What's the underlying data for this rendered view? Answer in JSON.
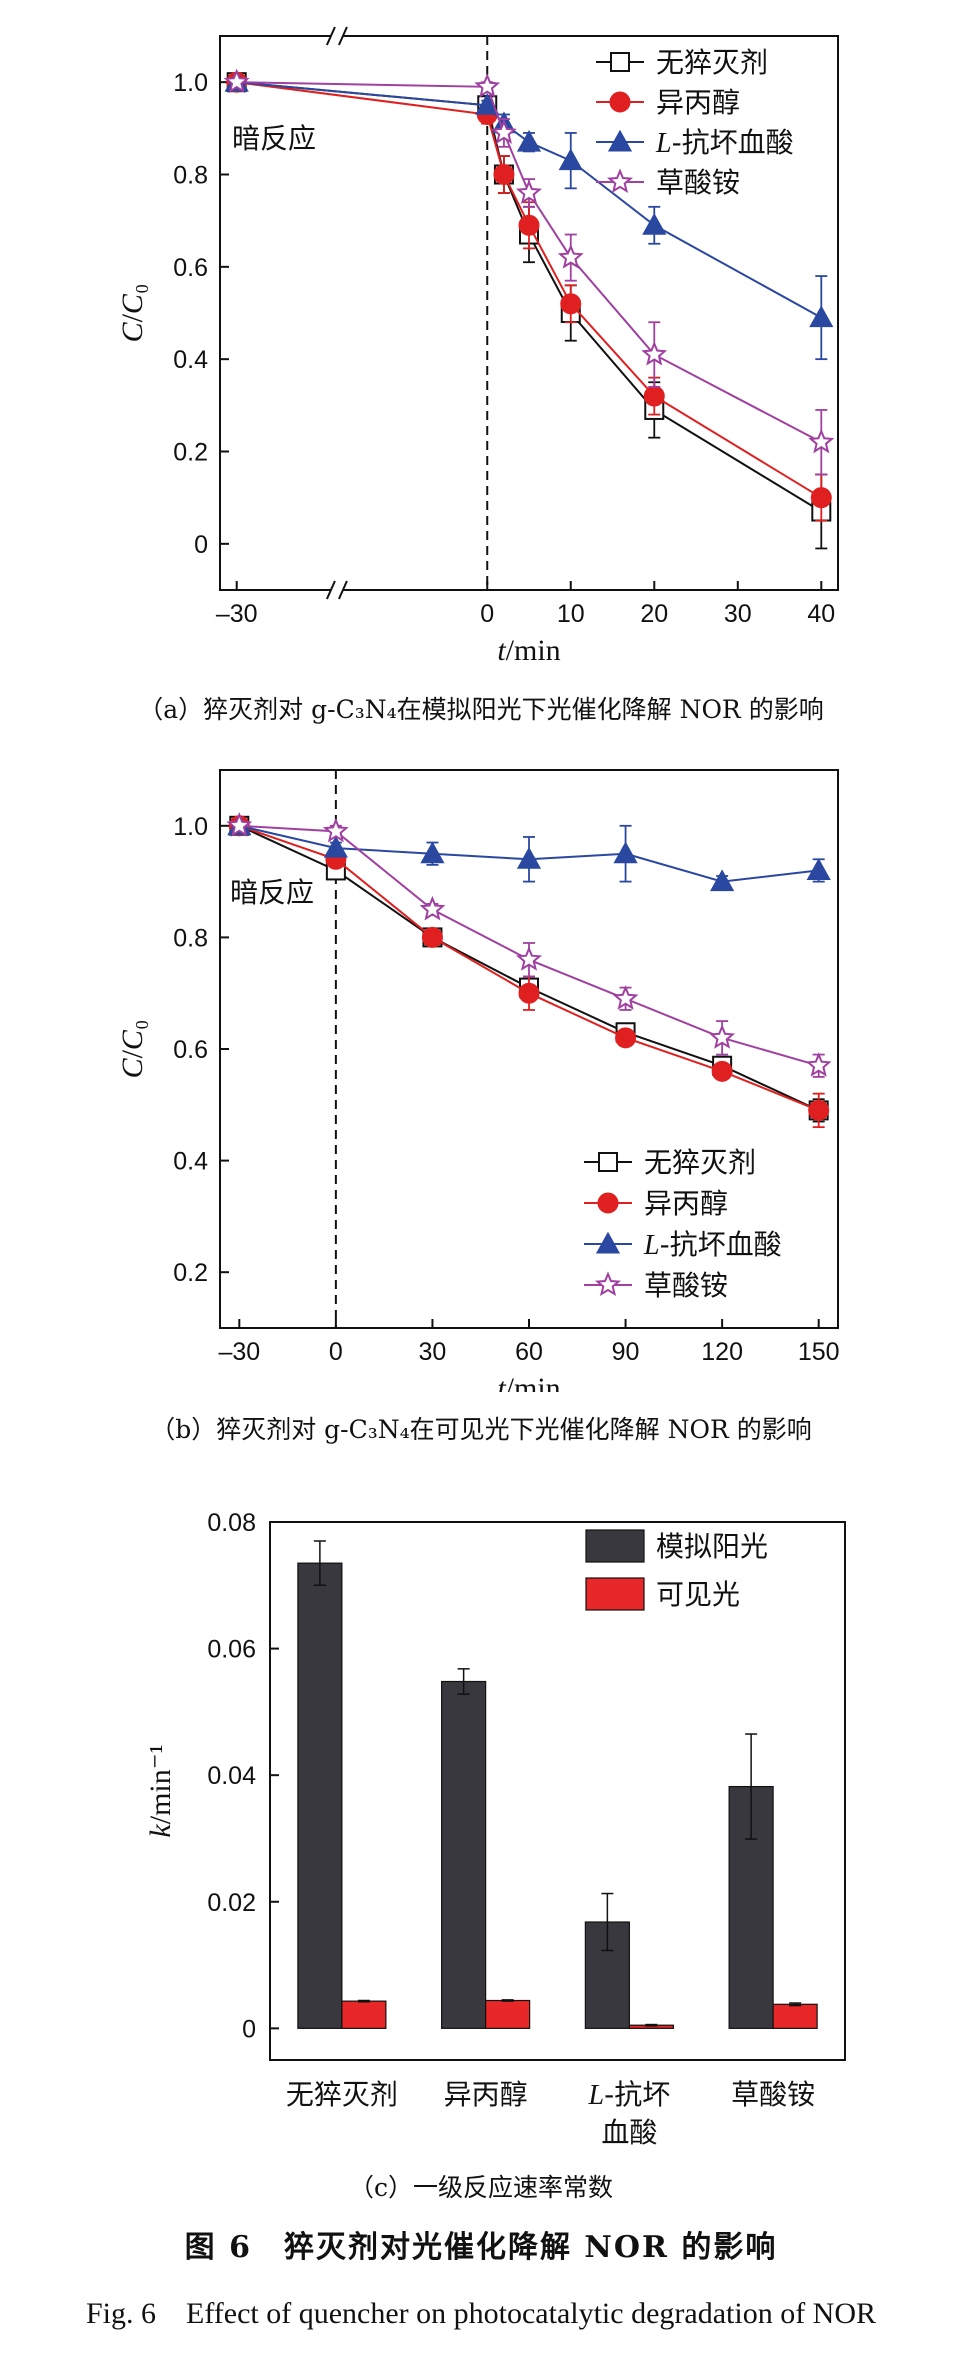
{
  "chart_data": [
    {
      "id": "a",
      "type": "line",
      "caption": "（a）猝灭剂对 g-C₃N₄在模拟阳光下光催化降解 NOR 的影响",
      "xlabel": "t/min",
      "ylabel": "C/C₀",
      "x": [
        -30,
        0,
        2,
        5,
        10,
        20,
        40
      ],
      "xlim": [
        -32,
        42
      ],
      "ylim": [
        -0.1,
        1.1
      ],
      "xticks": [
        -30,
        0,
        10,
        20,
        30,
        40
      ],
      "yticks": [
        0,
        0.2,
        0.4,
        0.6,
        0.8,
        1.0
      ],
      "ytick_labels": [
        "0",
        "0.2",
        "0.4",
        "0.6",
        "0.8",
        "1.0"
      ],
      "axis_break": true,
      "dark_line_x": 0,
      "annotation": "暗反应",
      "legend": "top-right",
      "series": [
        {
          "name": "无猝灭剂",
          "color": "#111111",
          "marker": "square-open",
          "values": [
            1.0,
            0.95,
            0.8,
            0.67,
            0.5,
            0.29,
            0.07
          ],
          "errors": [
            0,
            0.02,
            0.04,
            0.06,
            0.06,
            0.06,
            0.08
          ]
        },
        {
          "name": "异丙醇",
          "color": "#e02020",
          "marker": "circle-filled",
          "values": [
            1.0,
            0.93,
            0.8,
            0.69,
            0.52,
            0.32,
            0.1
          ],
          "errors": [
            0,
            0.02,
            0.04,
            0.05,
            0.04,
            0.04,
            0.05
          ]
        },
        {
          "name": "L-抗坏血酸",
          "color": "#2a48a0",
          "marker": "triangle-filled",
          "values": [
            1.0,
            0.95,
            0.91,
            0.87,
            0.83,
            0.69,
            0.49
          ],
          "errors": [
            0,
            0.01,
            0.02,
            0.02,
            0.06,
            0.04,
            0.09
          ]
        },
        {
          "name": "草酸铵",
          "color": "#a040a0",
          "marker": "star-open",
          "values": [
            1.0,
            0.99,
            0.89,
            0.76,
            0.62,
            0.41,
            0.22
          ],
          "errors": [
            0,
            0.01,
            0.03,
            0.03,
            0.05,
            0.07,
            0.07
          ]
        }
      ]
    },
    {
      "id": "b",
      "type": "line",
      "caption": "（b）猝灭剂对 g-C₃N₄在可见光下光催化降解 NOR 的影响",
      "xlabel": "t/min",
      "ylabel": "C/C₀",
      "x": [
        -30,
        0,
        30,
        60,
        90,
        120,
        150
      ],
      "xlim": [
        -36,
        156
      ],
      "ylim": [
        0.1,
        1.1
      ],
      "xticks": [
        -30,
        0,
        30,
        60,
        90,
        120,
        150
      ],
      "yticks": [
        0.2,
        0.4,
        0.6,
        0.8,
        1.0
      ],
      "ytick_labels": [
        "0.2",
        "0.4",
        "0.6",
        "0.8",
        "1.0"
      ],
      "axis_break": false,
      "dark_line_x": 0,
      "annotation": "暗反应",
      "legend": "bottom-center",
      "series": [
        {
          "name": "无猝灭剂",
          "color": "#111111",
          "marker": "square-open",
          "values": [
            1.0,
            0.92,
            0.8,
            0.71,
            0.63,
            0.57,
            0.49
          ],
          "errors": [
            0,
            0.01,
            0.01,
            0.02,
            0.01,
            0.01,
            0.02
          ]
        },
        {
          "name": "异丙醇",
          "color": "#e02020",
          "marker": "circle-filled",
          "values": [
            1.0,
            0.94,
            0.8,
            0.7,
            0.62,
            0.56,
            0.49
          ],
          "errors": [
            0,
            0.01,
            0.01,
            0.03,
            0.01,
            0.01,
            0.03
          ]
        },
        {
          "name": "L-抗坏血酸",
          "color": "#2a48a0",
          "marker": "triangle-filled",
          "values": [
            1.0,
            0.96,
            0.95,
            0.94,
            0.95,
            0.9,
            0.92
          ],
          "errors": [
            0,
            0.01,
            0.02,
            0.04,
            0.05,
            0.01,
            0.02
          ]
        },
        {
          "name": "草酸铵",
          "color": "#a040a0",
          "marker": "star-open",
          "values": [
            1.0,
            0.99,
            0.85,
            0.76,
            0.69,
            0.62,
            0.57
          ],
          "errors": [
            0,
            0.01,
            0.01,
            0.03,
            0.02,
            0.03,
            0.02
          ]
        }
      ]
    },
    {
      "id": "c",
      "type": "bar",
      "caption": "（c）一级反应速率常数",
      "xlabel": "",
      "ylabel": "k/min⁻¹",
      "categories": [
        "无猝灭剂",
        "异丙醇",
        "L-抗坏|血酸",
        "草酸铵"
      ],
      "ylim": [
        -0.005,
        0.08
      ],
      "yticks": [
        0,
        0.02,
        0.04,
        0.06,
        0.08
      ],
      "ytick_labels": [
        "0",
        "0.02",
        "0.04",
        "0.06",
        "0.08"
      ],
      "legend": "top-right",
      "series": [
        {
          "name": "模拟阳光",
          "color": "#38383e",
          "values": [
            0.0735,
            0.0548,
            0.0168,
            0.0382
          ],
          "errors": [
            0.0035,
            0.002,
            0.0045,
            0.0083
          ]
        },
        {
          "name": "可见光",
          "color": "#e82828",
          "values": [
            0.0043,
            0.0044,
            0.0005,
            0.0038
          ],
          "errors": [
            0.0001,
            0.0001,
            0.0001,
            0.0002
          ]
        }
      ]
    }
  ],
  "figure": {
    "title": "图 6　猝灭剂对光催化降解 NOR 的影响",
    "title_en": "Fig. 6　Effect of quencher on photocatalytic degradation of NOR"
  }
}
